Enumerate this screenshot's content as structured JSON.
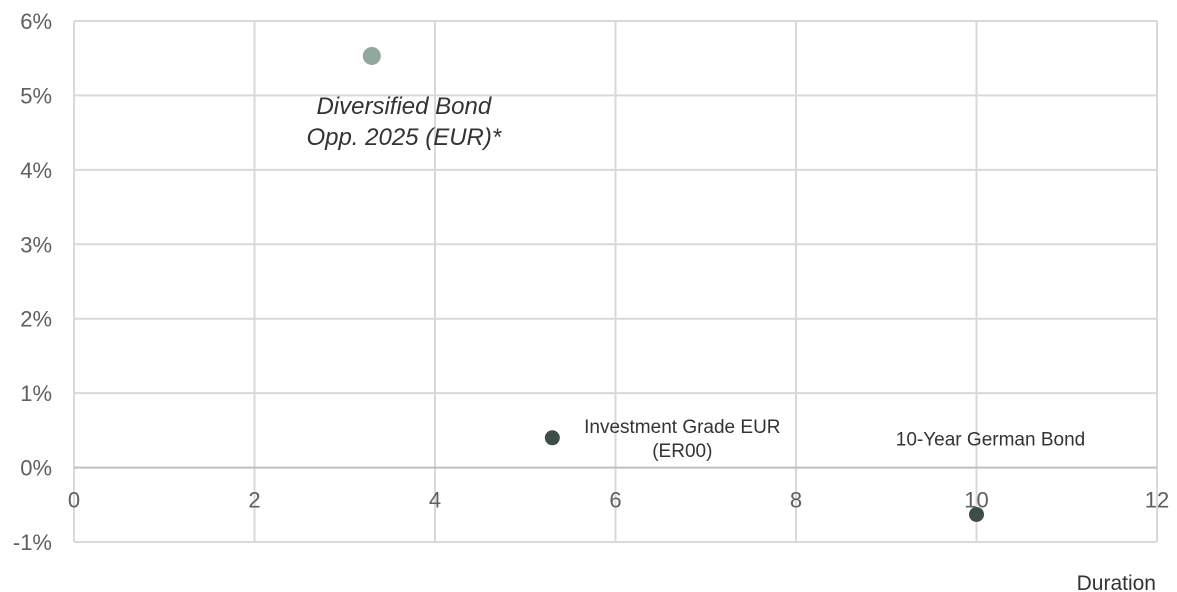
{
  "chart_data": {
    "type": "scatter",
    "xlabel": "Duration",
    "ylabel": "",
    "xlim": [
      0,
      12
    ],
    "ylim": [
      -1,
      6
    ],
    "x_ticks": [
      "0",
      "2",
      "4",
      "6",
      "8",
      "10",
      "12"
    ],
    "y_ticks": [
      "6%",
      "5%",
      "4%",
      "3%",
      "2%",
      "1%",
      "0%",
      "-1%"
    ],
    "grid": true,
    "points": [
      {
        "label_lines": [
          "Diversified Bond",
          "Opp. 2025 (EUR)*"
        ],
        "x": 3.3,
        "y": 5.53,
        "color": "#8fa89b",
        "emphasis": true
      },
      {
        "label_lines": [
          "Investment Grade EUR",
          "(ER00)"
        ],
        "x": 5.3,
        "y": 0.4,
        "color": "#3d4e46",
        "emphasis": false
      },
      {
        "label_lines": [
          "10-Year German Bond"
        ],
        "x": 10.0,
        "y": -0.63,
        "color": "#3d4e46",
        "emphasis": false
      }
    ]
  }
}
